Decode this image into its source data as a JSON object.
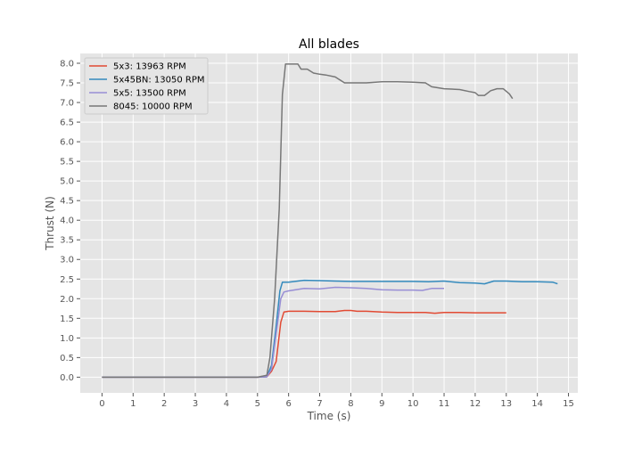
{
  "chart_data": {
    "type": "line",
    "title": "All blades",
    "xlabel": "Time (s)",
    "ylabel": "Thrust (N)",
    "xlim": [
      -0.7,
      15.3
    ],
    "ylim": [
      -0.4,
      8.25
    ],
    "xticks": [
      0,
      1,
      2,
      3,
      4,
      5,
      6,
      7,
      8,
      9,
      10,
      11,
      12,
      13,
      14,
      15
    ],
    "yticks": [
      "0.0",
      "0.5",
      "1.0",
      "1.5",
      "2.0",
      "2.5",
      "3.0",
      "3.5",
      "4.0",
      "4.5",
      "5.0",
      "5.5",
      "6.0",
      "6.5",
      "7.0",
      "7.5",
      "8.0"
    ],
    "grid": true,
    "legend_position": "top-left",
    "background": "#e5e5e5",
    "series": [
      {
        "name": "5x3: 13963 RPM",
        "color": "#e24a33",
        "x": [
          0,
          1,
          2,
          3,
          4,
          5,
          5.3,
          5.45,
          5.6,
          5.75,
          5.85,
          6,
          6.5,
          7,
          7.5,
          7.8,
          8,
          8.2,
          8.5,
          9,
          9.5,
          10,
          10.4,
          10.7,
          11,
          11.5,
          12,
          12.5,
          13
        ],
        "y": [
          0.0,
          0.0,
          0.0,
          0.0,
          0.0,
          0.0,
          0.01,
          0.15,
          0.4,
          1.4,
          1.66,
          1.68,
          1.68,
          1.67,
          1.67,
          1.7,
          1.7,
          1.68,
          1.68,
          1.66,
          1.65,
          1.65,
          1.65,
          1.63,
          1.65,
          1.65,
          1.64,
          1.64,
          1.64
        ]
      },
      {
        "name": "5x45BN: 13050 RPM",
        "color": "#348abd",
        "x": [
          0,
          1,
          2,
          3,
          4,
          5,
          5.3,
          5.45,
          5.6,
          5.72,
          5.8,
          6,
          6.5,
          7,
          7.5,
          8,
          8.5,
          9,
          9.5,
          10,
          10.5,
          11,
          11.5,
          12,
          12.3,
          12.6,
          13,
          13.5,
          14,
          14.5,
          14.65
        ],
        "y": [
          0.0,
          0.0,
          0.0,
          0.0,
          0.0,
          0.0,
          0.01,
          0.3,
          1.3,
          2.2,
          2.42,
          2.42,
          2.47,
          2.46,
          2.45,
          2.44,
          2.44,
          2.44,
          2.44,
          2.44,
          2.43,
          2.45,
          2.41,
          2.4,
          2.38,
          2.45,
          2.45,
          2.43,
          2.43,
          2.42,
          2.38
        ]
      },
      {
        "name": "5x5: 13500 RPM",
        "color": "#988ed5",
        "x": [
          0,
          1,
          2,
          3,
          4,
          5,
          5.3,
          5.45,
          5.6,
          5.75,
          5.85,
          6,
          6.5,
          7,
          7.5,
          8,
          8.5,
          9,
          9.5,
          10,
          10.3,
          10.6,
          11
        ],
        "y": [
          0.0,
          0.0,
          0.0,
          0.0,
          0.0,
          0.0,
          0.01,
          0.2,
          1.1,
          2.0,
          2.17,
          2.2,
          2.26,
          2.25,
          2.29,
          2.28,
          2.26,
          2.23,
          2.22,
          2.22,
          2.21,
          2.26,
          2.26
        ]
      },
      {
        "name": "8045: 10000 RPM",
        "color": "#777777",
        "x": [
          0,
          1,
          2,
          3,
          4,
          5,
          5.3,
          5.4,
          5.55,
          5.7,
          5.8,
          5.9,
          6.3,
          6.4,
          6.6,
          6.8,
          7,
          7.2,
          7.5,
          7.8,
          8,
          8.5,
          9,
          9.5,
          10,
          10.4,
          10.6,
          11,
          11.5,
          11.8,
          12,
          12.1,
          12.3,
          12.5,
          12.7,
          12.9,
          13.1,
          13.2
        ],
        "y": [
          0.0,
          0.0,
          0.0,
          0.0,
          0.0,
          0.0,
          0.05,
          0.5,
          2.0,
          4.3,
          7.2,
          7.98,
          7.98,
          7.85,
          7.85,
          7.75,
          7.72,
          7.7,
          7.65,
          7.5,
          7.5,
          7.5,
          7.53,
          7.53,
          7.52,
          7.5,
          7.4,
          7.35,
          7.33,
          7.28,
          7.25,
          7.18,
          7.18,
          7.3,
          7.35,
          7.35,
          7.22,
          7.1
        ]
      }
    ]
  }
}
